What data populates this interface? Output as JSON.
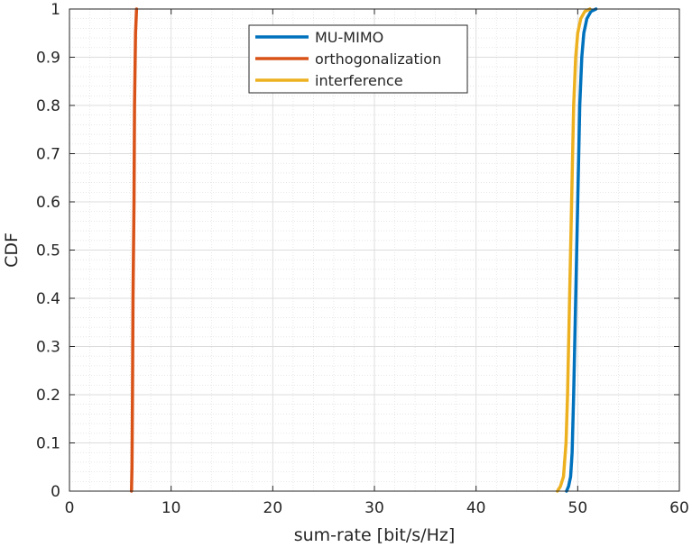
{
  "chart_data": {
    "type": "line",
    "title": "",
    "xlabel": "sum-rate [bit/s/Hz]",
    "ylabel": "CDF",
    "xlim": [
      0,
      60
    ],
    "ylim": [
      0,
      1
    ],
    "xticks": [
      0,
      10,
      20,
      30,
      40,
      50,
      60
    ],
    "xtick_labels": [
      "0",
      "10",
      "20",
      "30",
      "40",
      "50",
      "60"
    ],
    "yticks": [
      0,
      0.1,
      0.2,
      0.3,
      0.4,
      0.5,
      0.6,
      0.7,
      0.8,
      0.9,
      1
    ],
    "ytick_labels": [
      "0",
      "0.1",
      "0.2",
      "0.3",
      "0.4",
      "0.5",
      "0.6",
      "0.7",
      "0.8",
      "0.9",
      "1"
    ],
    "grid": true,
    "minor_grid": true,
    "legend_position": "top-center",
    "series": [
      {
        "name": "MU-MIMO",
        "color": "#0072BD",
        "points": [
          [
            48.9,
            0
          ],
          [
            49.1,
            0.01
          ],
          [
            49.3,
            0.03
          ],
          [
            49.45,
            0.08
          ],
          [
            49.6,
            0.2
          ],
          [
            49.75,
            0.35
          ],
          [
            49.9,
            0.5
          ],
          [
            50.05,
            0.65
          ],
          [
            50.2,
            0.8
          ],
          [
            50.4,
            0.9
          ],
          [
            50.6,
            0.95
          ],
          [
            50.9,
            0.98
          ],
          [
            51.3,
            0.995
          ],
          [
            51.8,
            1
          ]
        ]
      },
      {
        "name": "orthogonalization",
        "color": "#D95319",
        "points": [
          [
            6.1,
            0
          ],
          [
            6.15,
            0.05
          ],
          [
            6.2,
            0.2
          ],
          [
            6.25,
            0.4
          ],
          [
            6.3,
            0.5
          ],
          [
            6.35,
            0.6
          ],
          [
            6.4,
            0.8
          ],
          [
            6.5,
            0.95
          ],
          [
            6.6,
            1
          ]
        ]
      },
      {
        "name": "interference",
        "color": "#EDB120",
        "points": [
          [
            48.0,
            0
          ],
          [
            48.3,
            0.01
          ],
          [
            48.6,
            0.03
          ],
          [
            48.85,
            0.1
          ],
          [
            49.0,
            0.2
          ],
          [
            49.15,
            0.35
          ],
          [
            49.3,
            0.5
          ],
          [
            49.45,
            0.65
          ],
          [
            49.6,
            0.8
          ],
          [
            49.8,
            0.9
          ],
          [
            50.0,
            0.95
          ],
          [
            50.3,
            0.98
          ],
          [
            50.7,
            0.995
          ],
          [
            51.2,
            1
          ]
        ]
      }
    ]
  }
}
